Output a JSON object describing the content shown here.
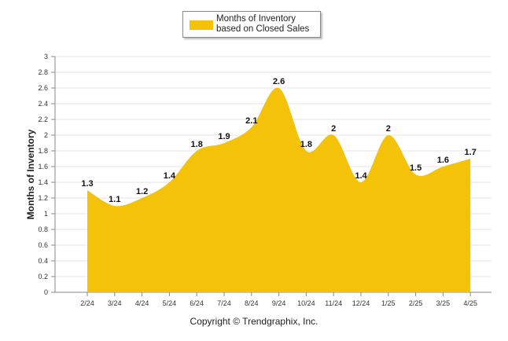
{
  "chart_data": {
    "type": "area",
    "categories": [
      "2/24",
      "3/24",
      "4/24",
      "5/24",
      "6/24",
      "7/24",
      "8/24",
      "9/24",
      "10/24",
      "11/24",
      "12/24",
      "1/25",
      "2/25",
      "3/25",
      "4/25"
    ],
    "series": [
      {
        "name": "Months of Inventory based on Closed Sales",
        "values": [
          1.3,
          1.1,
          1.2,
          1.4,
          1.8,
          1.9,
          2.1,
          2.6,
          1.8,
          2,
          1.4,
          2,
          1.5,
          1.6,
          1.7
        ]
      }
    ],
    "data_labels": [
      "1.3",
      "1.1",
      "1.2",
      "1.4",
      "1.8",
      "1.9",
      "2.1",
      "2.6",
      "1.8",
      "2",
      "1.4",
      "2",
      "1.5",
      "1.6",
      "1.7"
    ],
    "ylabel": "Months of Inventory",
    "ylim": [
      0,
      3
    ],
    "yticks": [
      "0",
      "0.2",
      "0.4",
      "0.6",
      "0.8",
      "1",
      "1.2",
      "1.4",
      "1.6",
      "1.8",
      "2",
      "2.2",
      "2.4",
      "2.6",
      "2.8",
      "3"
    ],
    "grid": true,
    "legend_position": "top-center",
    "colors": {
      "fill": "#F5C20A"
    }
  },
  "legend": {
    "label": "Months of Inventory based on Closed Sales"
  },
  "footer": {
    "copyright": "Copyright © Trendgraphix, Inc."
  }
}
